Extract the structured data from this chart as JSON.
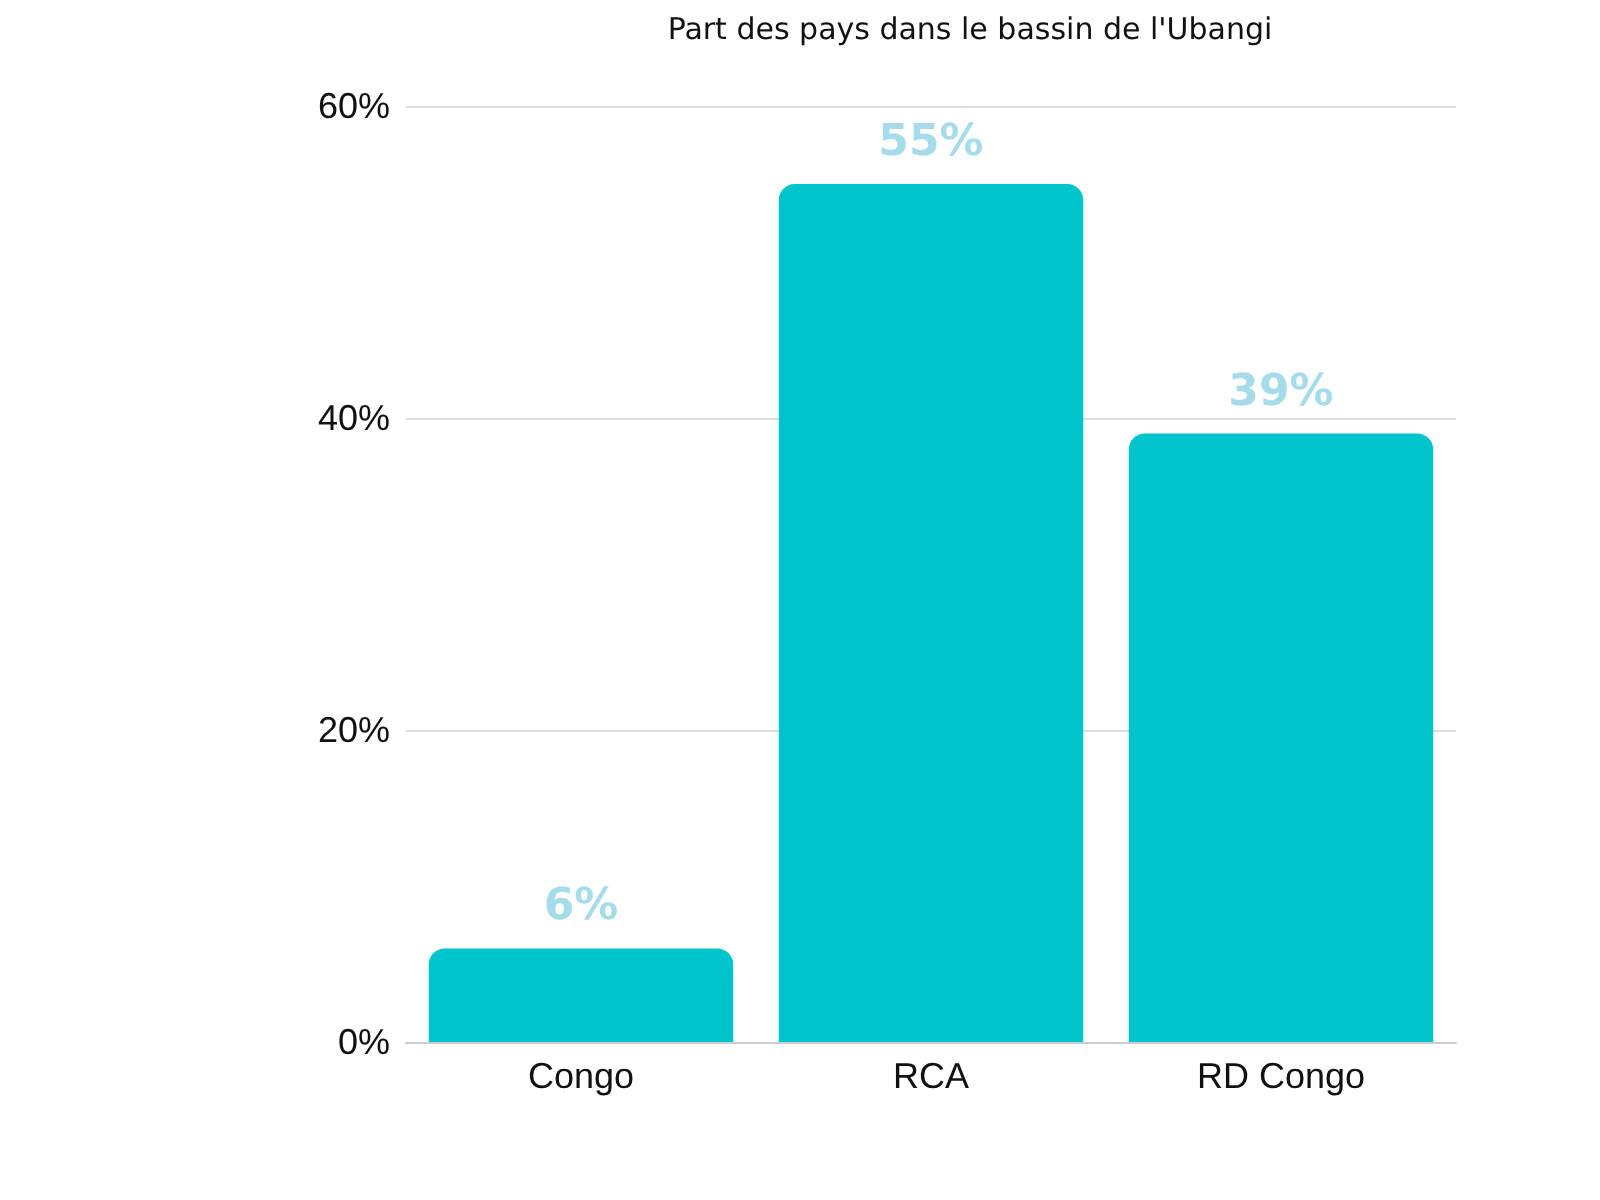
{
  "chart_data": {
    "type": "bar",
    "title": "Part des pays dans le bassin de l'Ubangi",
    "categories": [
      "Congo",
      "RCA",
      "RD Congo"
    ],
    "values": [
      6,
      55,
      39
    ],
    "value_labels": [
      "6%",
      "55%",
      "39%"
    ],
    "color": "#00c4cc",
    "ylim": [
      0,
      60
    ],
    "yticks": [
      {
        "value": 0,
        "label": "0%"
      },
      {
        "value": 20,
        "label": "20%"
      },
      {
        "value": 40,
        "label": "40%"
      },
      {
        "value": 60,
        "label": "60%"
      }
    ],
    "grid": "y"
  }
}
